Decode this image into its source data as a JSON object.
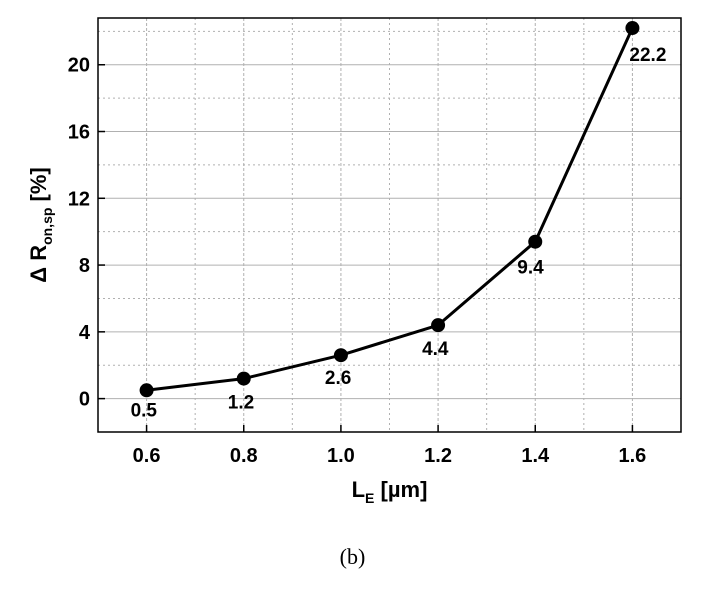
{
  "chart_data": {
    "type": "line",
    "x": [
      0.6,
      0.8,
      1.0,
      1.2,
      1.4,
      1.6
    ],
    "series": [
      {
        "values": [
          0.5,
          1.2,
          2.6,
          4.4,
          9.4,
          22.2
        ]
      }
    ],
    "data_labels": [
      "0.5",
      "1.2",
      "2.6",
      "4.4",
      "9.4",
      "22.2"
    ],
    "x_ticks": [
      "0.6",
      "0.8",
      "1.0",
      "1.2",
      "1.4",
      "1.6"
    ],
    "y_ticks": [
      "0",
      "4",
      "8",
      "12",
      "16",
      "20"
    ],
    "xlabel": {
      "main": "L",
      "sub": "E",
      "rest": " [µm]"
    },
    "ylabel": {
      "main": "Δ R",
      "sub": "on,sp",
      "rest": " [%]"
    },
    "xlim": [
      0.5,
      1.7
    ],
    "ylim": [
      -2,
      22.8
    ],
    "grid": true,
    "line_color": "#000000",
    "marker_color": "#000000",
    "grid_color": "#b0b0b0"
  },
  "caption": "(b)"
}
